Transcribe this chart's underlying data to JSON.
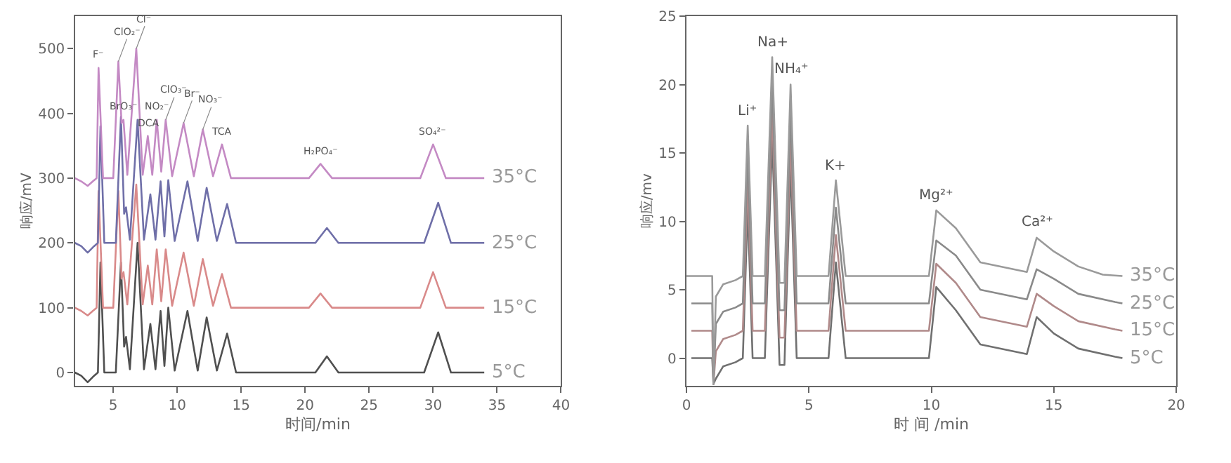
{
  "chart_data": [
    {
      "type": "line",
      "xlabel": "时间/min",
      "ylabel": "响应/mV",
      "xlim": [
        2,
        40
      ],
      "xticks": [
        5,
        10,
        15,
        20,
        25,
        30,
        35,
        40
      ],
      "ylim": [
        -20,
        550
      ],
      "yticks": [
        0,
        100,
        200,
        300,
        400,
        500
      ],
      "marker": "none",
      "line_style": "solid",
      "series": [
        {
          "name": "5°C",
          "color": "#505050",
          "x": [
            2.0,
            2.5,
            3.0,
            3.5,
            3.8,
            4.0,
            4.3,
            5.2,
            5.6,
            5.85,
            6.0,
            6.3,
            6.9,
            7.4,
            7.9,
            8.3,
            8.7,
            9.0,
            9.3,
            9.8,
            10.8,
            11.6,
            12.3,
            13.1,
            13.9,
            14.6,
            20.8,
            21.7,
            22.6,
            29.3,
            30.4,
            31.4,
            34.0
          ],
          "values": [
            0,
            -5,
            -15,
            -5,
            0,
            170,
            0,
            0,
            170,
            40,
            55,
            5,
            200,
            5,
            75,
            5,
            95,
            10,
            100,
            3,
            95,
            3,
            85,
            3,
            60,
            0,
            0,
            25,
            0,
            0,
            62,
            0,
            0
          ]
        },
        {
          "name": "15°C",
          "color": "#d98a8a",
          "x": [
            2.0,
            2.5,
            3.0,
            3.4,
            3.7,
            3.85,
            4.2,
            5.0,
            5.4,
            5.65,
            5.8,
            6.1,
            6.8,
            7.3,
            7.7,
            8.05,
            8.4,
            8.75,
            9.1,
            9.6,
            10.5,
            11.3,
            12.0,
            12.8,
            13.5,
            14.2,
            20.3,
            21.2,
            22.1,
            29.0,
            30.0,
            31.0,
            34.0
          ],
          "values": [
            100,
            95,
            88,
            95,
            100,
            280,
            100,
            100,
            280,
            145,
            155,
            105,
            290,
            105,
            165,
            105,
            190,
            110,
            190,
            103,
            185,
            103,
            175,
            103,
            152,
            100,
            100,
            122,
            100,
            100,
            155,
            100,
            100
          ]
        },
        {
          "name": "25°C",
          "color": "#6f6fa8",
          "x": [
            2.0,
            2.5,
            3.0,
            3.5,
            3.8,
            4.0,
            4.3,
            5.2,
            5.6,
            5.85,
            6.0,
            6.3,
            6.9,
            7.4,
            7.9,
            8.3,
            8.7,
            9.0,
            9.3,
            9.8,
            10.8,
            11.6,
            12.3,
            13.1,
            13.9,
            14.6,
            20.8,
            21.7,
            22.6,
            29.3,
            30.4,
            31.4,
            34.0
          ],
          "values": [
            200,
            195,
            185,
            195,
            200,
            380,
            200,
            200,
            395,
            245,
            255,
            205,
            390,
            205,
            275,
            205,
            295,
            210,
            297,
            203,
            295,
            203,
            285,
            203,
            260,
            200,
            200,
            223,
            200,
            200,
            262,
            200,
            200
          ]
        },
        {
          "name": "35°C",
          "color": "#c48ac4",
          "x": [
            2.0,
            2.5,
            3.0,
            3.4,
            3.7,
            3.85,
            4.2,
            5.0,
            5.4,
            5.65,
            5.8,
            6.1,
            6.8,
            7.3,
            7.7,
            8.05,
            8.4,
            8.75,
            9.1,
            9.6,
            10.5,
            11.3,
            12.0,
            12.8,
            13.5,
            14.2,
            20.3,
            21.2,
            22.1,
            29.0,
            30.0,
            31.0,
            34.0
          ],
          "values": [
            300,
            295,
            288,
            295,
            300,
            470,
            300,
            300,
            480,
            385,
            390,
            305,
            500,
            305,
            365,
            305,
            390,
            310,
            390,
            303,
            385,
            303,
            375,
            303,
            352,
            300,
            300,
            322,
            300,
            300,
            352,
            300,
            300
          ]
        }
      ],
      "annotations": [
        {
          "text": "F⁻",
          "x": 3.85,
          "y": 470
        },
        {
          "text": "ClO₂⁻",
          "x": 5.4,
          "y": 480
        },
        {
          "text": "Cl⁻",
          "x": 6.8,
          "y": 500
        },
        {
          "text": "BrO₃⁻",
          "x": 5.8,
          "y": 390
        },
        {
          "text": "DCA",
          "x": 7.7,
          "y": 365
        },
        {
          "text": "NO₂⁻",
          "x": 8.4,
          "y": 390
        },
        {
          "text": "ClO₃⁻",
          "x": 9.1,
          "y": 390
        },
        {
          "text": "Br⁻",
          "x": 10.5,
          "y": 385
        },
        {
          "text": "NO₃⁻",
          "x": 12.0,
          "y": 375
        },
        {
          "text": "TCA",
          "x": 13.5,
          "y": 352
        },
        {
          "text": "H₂PO₄⁻",
          "x": 21.2,
          "y": 322
        },
        {
          "text": "SO₄²⁻",
          "x": 30.0,
          "y": 352
        }
      ]
    },
    {
      "type": "line",
      "xlabel": "时 间 /min",
      "ylabel": "响应/mv",
      "xlim": [
        0,
        20
      ],
      "xticks": [
        0,
        5,
        10,
        15,
        20
      ],
      "ylim": [
        -2,
        25
      ],
      "yticks": [
        0,
        5,
        10,
        15,
        20,
        25
      ],
      "marker": "none",
      "line_style": "solid",
      "series": [
        {
          "name": "5°C",
          "color": "#707070",
          "x": [
            0.2,
            1.05,
            1.1,
            1.2,
            1.5,
            2.0,
            2.3,
            2.5,
            2.7,
            3.2,
            3.5,
            3.8,
            4.0,
            4.25,
            4.5,
            5.8,
            6.1,
            6.5,
            9.9,
            10.2,
            11.0,
            12.0,
            13.9,
            14.3,
            15.0,
            16.0,
            17.5,
            17.8
          ],
          "values": [
            0,
            0,
            -1.9,
            -1.5,
            -0.6,
            -0.3,
            0,
            11,
            0,
            0,
            16,
            -0.5,
            -0.5,
            14,
            0,
            0,
            7,
            0,
            0,
            5.2,
            3.5,
            1,
            0.3,
            3,
            1.8,
            0.7,
            0.1,
            0
          ]
        },
        {
          "name": "15°C",
          "color": "#b08a8a",
          "x": [
            0.2,
            1.05,
            1.1,
            1.2,
            1.5,
            2.0,
            2.3,
            2.5,
            2.7,
            3.2,
            3.5,
            3.8,
            4.0,
            4.25,
            4.5,
            5.8,
            6.1,
            6.5,
            9.9,
            10.2,
            11.0,
            12.0,
            13.9,
            14.3,
            15.0,
            16.0,
            17.5,
            17.8
          ],
          "values": [
            2,
            2,
            -1.9,
            0.5,
            1.4,
            1.7,
            2,
            13,
            2,
            2,
            18,
            1.5,
            1.5,
            16,
            2,
            2,
            9,
            2,
            2,
            6.9,
            5.5,
            3,
            2.3,
            4.7,
            3.8,
            2.7,
            2.1,
            2
          ]
        },
        {
          "name": "25°C",
          "color": "#8a8a8a",
          "x": [
            0.2,
            1.05,
            1.1,
            1.2,
            1.5,
            2.0,
            2.3,
            2.5,
            2.7,
            3.2,
            3.5,
            3.8,
            4.0,
            4.25,
            4.5,
            5.8,
            6.1,
            6.5,
            9.9,
            10.2,
            11.0,
            12.0,
            13.9,
            14.3,
            15.0,
            16.0,
            17.5,
            17.8
          ],
          "values": [
            4,
            4,
            -1.9,
            2.5,
            3.4,
            3.7,
            4,
            15,
            4,
            4,
            20,
            3.5,
            3.5,
            18,
            4,
            4,
            11,
            4,
            4,
            8.6,
            7.5,
            5,
            4.3,
            6.5,
            5.8,
            4.7,
            4.1,
            4
          ]
        },
        {
          "name": "35°C",
          "color": "#9a9a9a",
          "x": [
            0.0,
            1.05,
            1.1,
            1.2,
            1.5,
            2.0,
            2.3,
            2.5,
            2.7,
            3.2,
            3.5,
            3.8,
            4.0,
            4.25,
            4.5,
            5.8,
            6.1,
            6.5,
            9.9,
            10.2,
            11.0,
            12.0,
            13.9,
            14.3,
            15.0,
            16.0,
            17.0,
            17.8
          ],
          "values": [
            6,
            6,
            -1.9,
            4.5,
            5.4,
            5.7,
            6,
            17,
            6,
            6,
            22,
            5.5,
            5.5,
            20,
            6,
            6,
            13,
            6,
            6,
            10.8,
            9.5,
            7,
            6.3,
            8.8,
            7.8,
            6.7,
            6.1,
            6
          ]
        }
      ],
      "annotations": [
        {
          "text": "Li⁺",
          "x": 2.5,
          "y": 17
        },
        {
          "text": "Na+",
          "x": 3.5,
          "y": 22
        },
        {
          "text": "NH₄⁺",
          "x": 4.25,
          "y": 20
        },
        {
          "text": "K+",
          "x": 6.1,
          "y": 13
        },
        {
          "text": "Mg²⁺",
          "x": 10.2,
          "y": 10.8
        },
        {
          "text": "Ca²⁺",
          "x": 14.3,
          "y": 8.8
        }
      ]
    }
  ]
}
